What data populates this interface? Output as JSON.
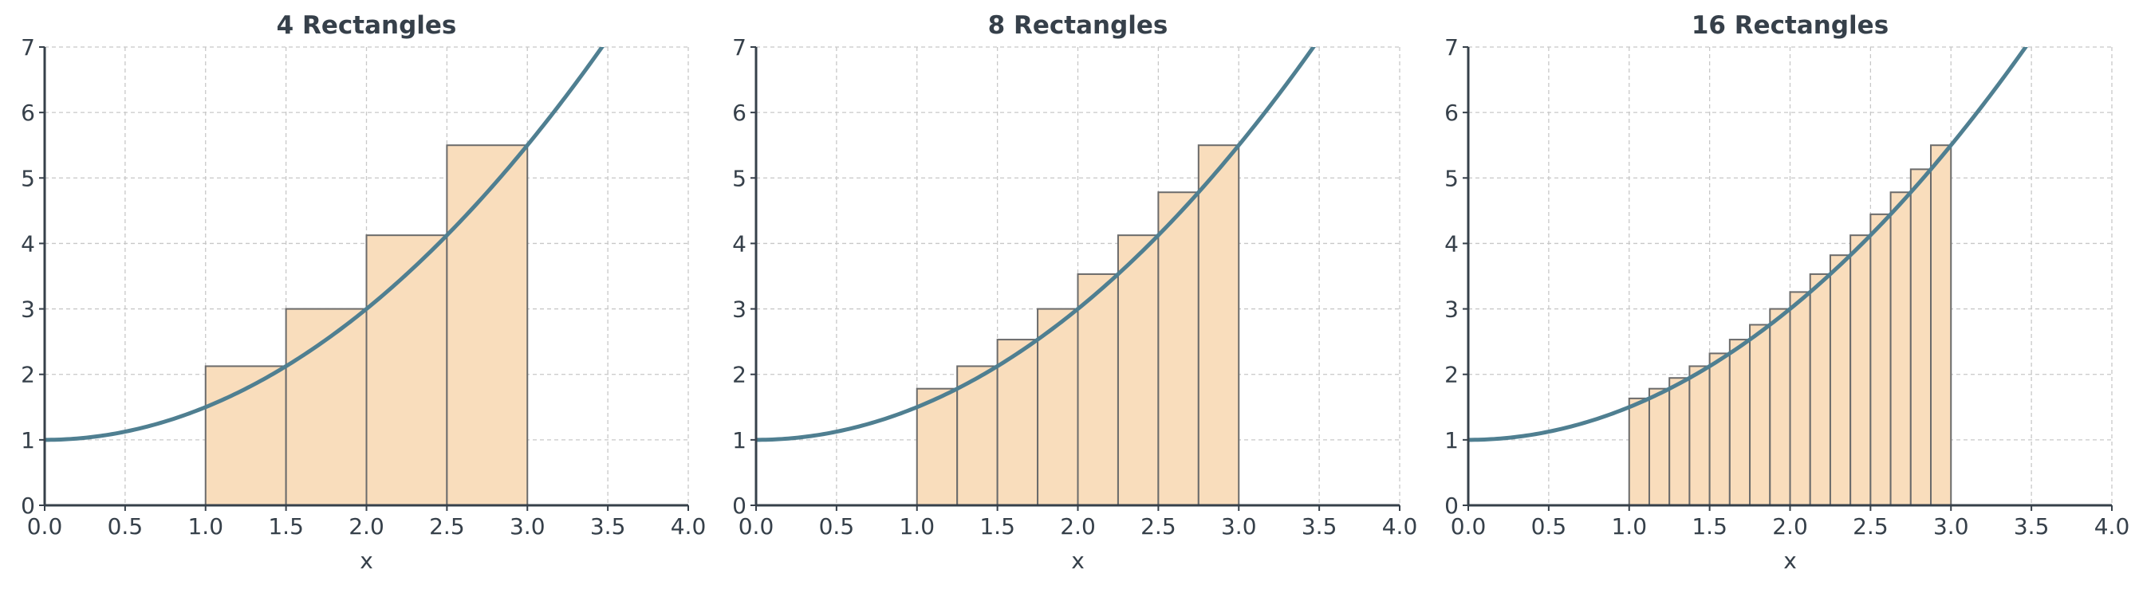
{
  "colors": {
    "curve": "#4f7f91",
    "rect_fill": "#f9ddbc",
    "rect_stroke": "#6b6b6b",
    "axis": "#36404a",
    "grid": "#c8c8c8",
    "text": "#36404a"
  },
  "chart_data": [
    {
      "type": "bar",
      "title": "4 Rectangles",
      "xlabel": "x",
      "ylabel": "",
      "xlim": [
        0,
        4
      ],
      "ylim": [
        0,
        7
      ],
      "xticks": [
        "0.0",
        "0.5",
        "1.0",
        "1.5",
        "2.0",
        "2.5",
        "3.0",
        "3.5",
        "4.0"
      ],
      "yticks": [
        "0",
        "1",
        "2",
        "3",
        "4",
        "5",
        "6",
        "7"
      ],
      "grid": true,
      "curve": {
        "function": "1 + 0.5*x^2",
        "x_range": [
          0,
          4
        ]
      },
      "rectangles": [
        {
          "x0": 1.0,
          "x1": 1.5,
          "height": 2.125
        },
        {
          "x0": 1.5,
          "x1": 2.0,
          "height": 3.0
        },
        {
          "x0": 2.0,
          "x1": 2.5,
          "height": 4.125
        },
        {
          "x0": 2.5,
          "x1": 3.0,
          "height": 5.5
        }
      ]
    },
    {
      "type": "bar",
      "title": "8 Rectangles",
      "xlabel": "x",
      "ylabel": "",
      "xlim": [
        0,
        4
      ],
      "ylim": [
        0,
        7
      ],
      "xticks": [
        "0.0",
        "0.5",
        "1.0",
        "1.5",
        "2.0",
        "2.5",
        "3.0",
        "3.5",
        "4.0"
      ],
      "yticks": [
        "0",
        "1",
        "2",
        "3",
        "4",
        "5",
        "6",
        "7"
      ],
      "grid": true,
      "curve": {
        "function": "1 + 0.5*x^2",
        "x_range": [
          0,
          4
        ]
      },
      "rectangles": [
        {
          "x0": 1.0,
          "x1": 1.25,
          "height": 1.78125
        },
        {
          "x0": 1.25,
          "x1": 1.5,
          "height": 2.125
        },
        {
          "x0": 1.5,
          "x1": 1.75,
          "height": 2.53125
        },
        {
          "x0": 1.75,
          "x1": 2.0,
          "height": 3.0
        },
        {
          "x0": 2.0,
          "x1": 2.25,
          "height": 3.53125
        },
        {
          "x0": 2.25,
          "x1": 2.5,
          "height": 4.125
        },
        {
          "x0": 2.5,
          "x1": 2.75,
          "height": 4.78125
        },
        {
          "x0": 2.75,
          "x1": 3.0,
          "height": 5.5
        }
      ]
    },
    {
      "type": "bar",
      "title": "16 Rectangles",
      "xlabel": "x",
      "ylabel": "",
      "xlim": [
        0,
        4
      ],
      "ylim": [
        0,
        7
      ],
      "xticks": [
        "0.0",
        "0.5",
        "1.0",
        "1.5",
        "2.0",
        "2.5",
        "3.0",
        "3.5",
        "4.0"
      ],
      "yticks": [
        "0",
        "1",
        "2",
        "3",
        "4",
        "5",
        "6",
        "7"
      ],
      "grid": true,
      "curve": {
        "function": "1 + 0.5*x^2",
        "x_range": [
          0,
          4
        ]
      },
      "rectangles": [
        {
          "x0": 1.0,
          "x1": 1.125,
          "height": 1.6328
        },
        {
          "x0": 1.125,
          "x1": 1.25,
          "height": 1.7813
        },
        {
          "x0": 1.25,
          "x1": 1.375,
          "height": 1.9453
        },
        {
          "x0": 1.375,
          "x1": 1.5,
          "height": 2.125
        },
        {
          "x0": 1.5,
          "x1": 1.625,
          "height": 2.3203
        },
        {
          "x0": 1.625,
          "x1": 1.75,
          "height": 2.5313
        },
        {
          "x0": 1.75,
          "x1": 1.875,
          "height": 2.7578
        },
        {
          "x0": 1.875,
          "x1": 2.0,
          "height": 3.0
        },
        {
          "x0": 2.0,
          "x1": 2.125,
          "height": 3.2578
        },
        {
          "x0": 2.125,
          "x1": 2.25,
          "height": 3.5313
        },
        {
          "x0": 2.25,
          "x1": 2.375,
          "height": 3.8203
        },
        {
          "x0": 2.375,
          "x1": 2.5,
          "height": 4.125
        },
        {
          "x0": 2.5,
          "x1": 2.625,
          "height": 4.4453
        },
        {
          "x0": 2.625,
          "x1": 2.75,
          "height": 4.7813
        },
        {
          "x0": 2.75,
          "x1": 2.875,
          "height": 5.1328
        },
        {
          "x0": 2.875,
          "x1": 3.0,
          "height": 5.5
        }
      ]
    }
  ]
}
